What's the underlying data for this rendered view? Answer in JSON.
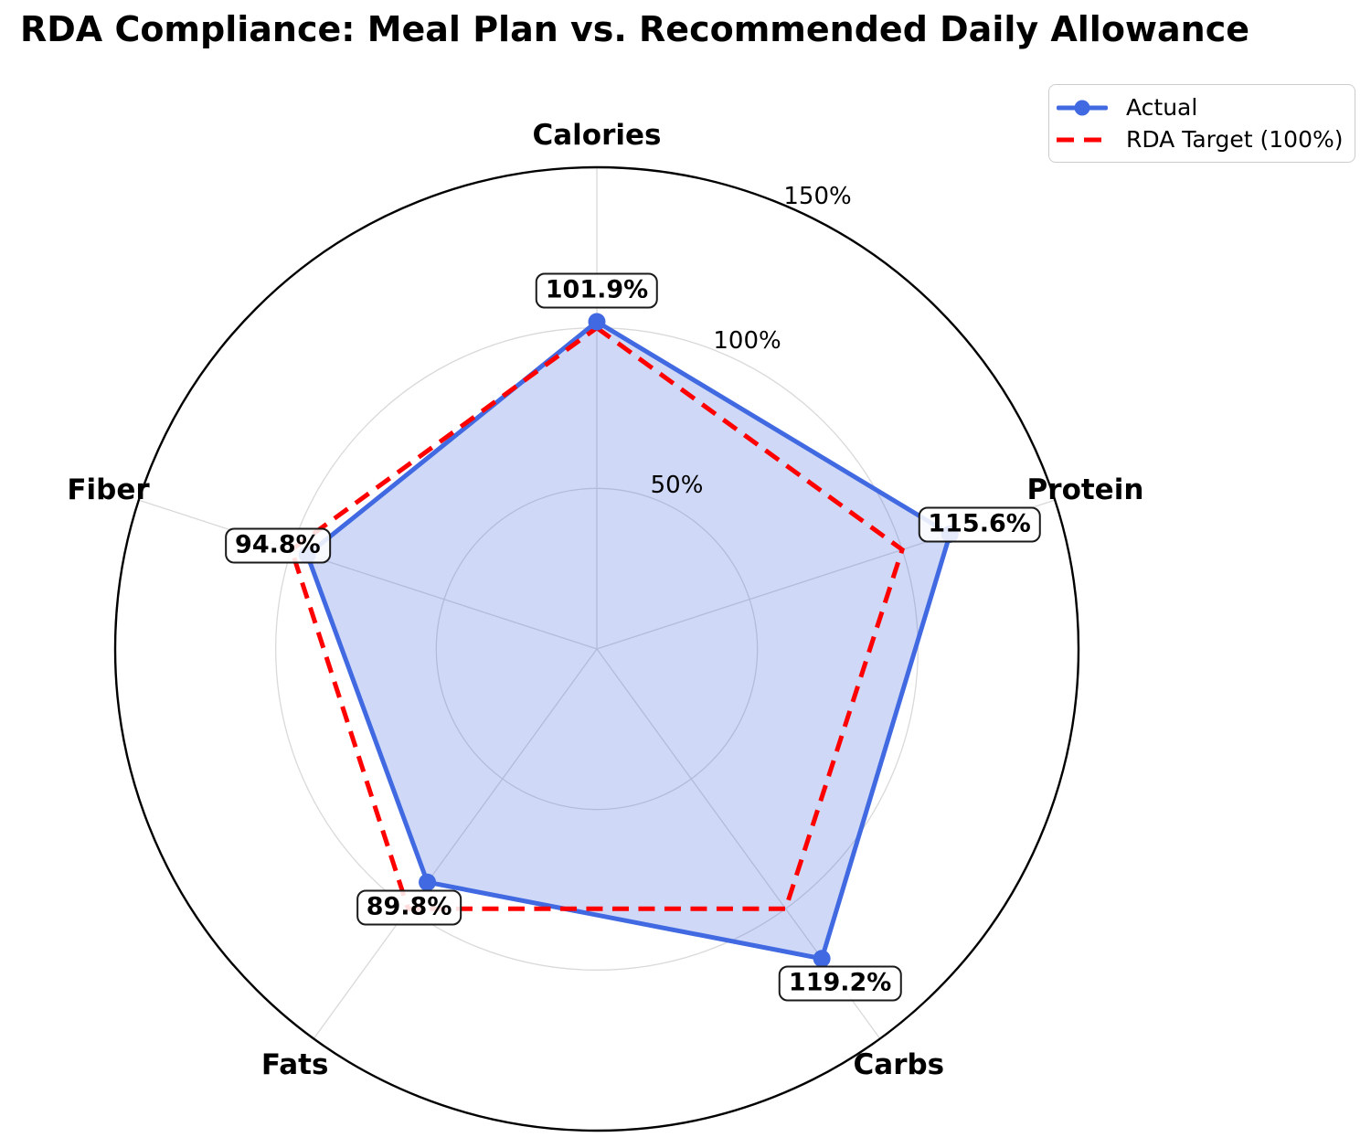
{
  "title": "RDA Compliance: Meal Plan vs. Recommended Daily Allowance",
  "legend": {
    "items": [
      {
        "label": "Actual",
        "color": "#4169E1",
        "style": "solid-with-marker"
      },
      {
        "label": "RDA Target (100%)",
        "color": "#FF0000",
        "style": "dashed"
      }
    ],
    "position": "top-right"
  },
  "chart_data": {
    "type": "radar",
    "categories": [
      "Calories",
      "Protein",
      "Carbs",
      "Fats",
      "Fiber"
    ],
    "series": [
      {
        "name": "Actual",
        "values": [
          101.9,
          115.6,
          119.2,
          89.8,
          94.8
        ],
        "labels": [
          "101.9%",
          "115.6%",
          "119.2%",
          "89.8%",
          "94.8%"
        ],
        "color": "#4169E1",
        "fill": "rgba(65,105,225,0.25)",
        "line_style": "solid",
        "markers": true
      },
      {
        "name": "RDA Target (100%)",
        "values": [
          100,
          100,
          100,
          100,
          100
        ],
        "color": "#FF0000",
        "line_style": "dashed",
        "markers": false
      }
    ],
    "radial_ticks": [
      {
        "value": 50,
        "label": "50%"
      },
      {
        "value": 100,
        "label": "100%"
      },
      {
        "value": 150,
        "label": "150%"
      }
    ],
    "rmax": 150,
    "grid": true,
    "grid_color": "#d9d9d9",
    "outer_ring_color": "#000000",
    "legend_position": "top-right"
  }
}
